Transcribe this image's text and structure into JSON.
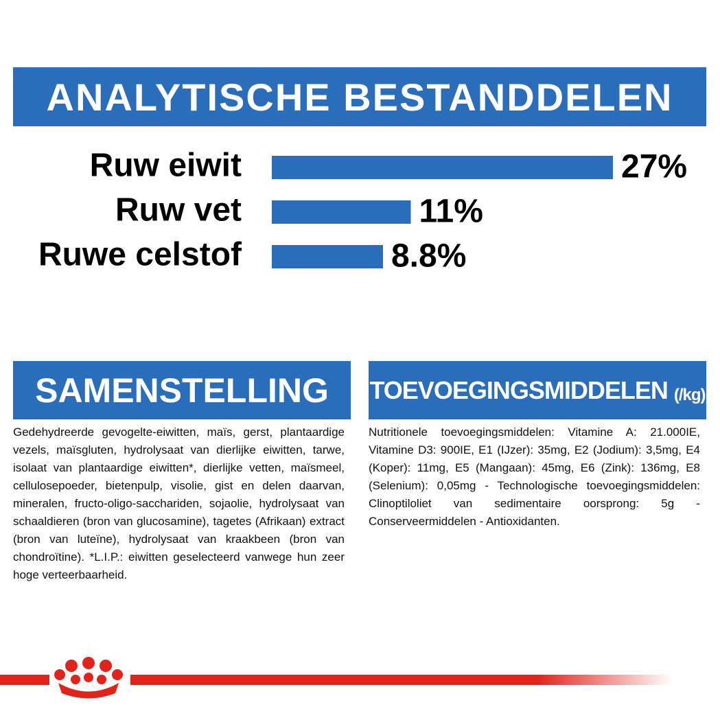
{
  "header": {
    "title": "ANALYTISCHE BESTANDDELEN"
  },
  "chart_data": {
    "type": "bar",
    "orientation": "horizontal",
    "color": "#2a6ebb",
    "categories": [
      "Ruw eiwit",
      "Ruw vet",
      "Ruwe celstof"
    ],
    "values": [
      27,
      11,
      8.8
    ],
    "value_labels": [
      "27%",
      "11%",
      "8.8%"
    ]
  },
  "sections": [
    {
      "title": "SAMENSTELLING",
      "text": "Gedehydreerde gevogelte-eiwitten, maïs, gerst, plantaardige vezels, maïsgluten, hydrolysaat van dierlijke eiwitten, tarwe, isolaat van plantaardige eiwitten*, dierlijke vetten, maïsmeel, cellulosepoeder, bietenpulp, visolie, gist en delen daarvan, mineralen, fructo-oligo-sacchariden, sojaolie, hydrolysaat van schaaldieren (bron van glucosamine), tagetes (Afrikaan) extract (bron van luteïne), hydrolysaat van kraakbeen (bron van chondroïtine). *L.I.P.: eiwitten geselecteerd vanwege hun zeer hoge verteerbaarheid."
    },
    {
      "title": "TOEVOEGINGSMIDDELEN",
      "unit": "(/kg)",
      "text": "Nutritionele toevoegingsmiddelen: Vitamine A: 21.000IE, Vitamine D3: 900IE, E1 (IJzer): 35mg, E2 (Jodium): 3,5mg, E4 (Koper): 11mg, E5 (Mangaan): 45mg, E6 (Zink): 136mg, E8 (Selenium): 0,05mg - Technologische toevoegingsmiddelen: Clinoptiloliet van sedimentaire oorsprong: 5g - Conserveermiddelen - Antioxidanten."
    }
  ]
}
